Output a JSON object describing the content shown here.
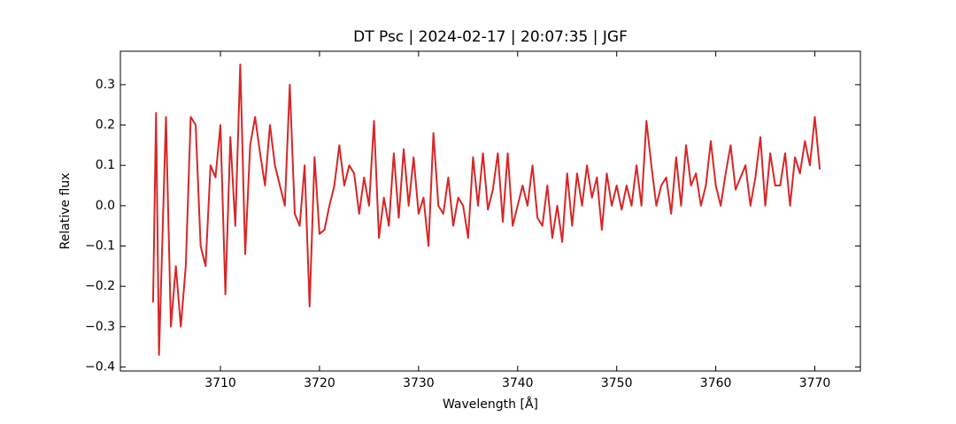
{
  "chart_data": {
    "type": "line",
    "title": "DT Psc | 2024-02-17 | 20:07:35 | JGF",
    "x_label": "Wavelength [Å]",
    "y_label": "Relative flux",
    "xlim": [
      3699.9,
      3774.6
    ],
    "ylim": [
      -0.41,
      0.383
    ],
    "xticks": [
      3710,
      3720,
      3730,
      3740,
      3750,
      3760,
      3770
    ],
    "yticks": [
      {
        "value": -0.4,
        "label": "−0.4"
      },
      {
        "value": -0.3,
        "label": "−0.3"
      },
      {
        "value": -0.2,
        "label": "−0.2"
      },
      {
        "value": -0.1,
        "label": "−0.1"
      },
      {
        "value": 0.0,
        "label": "0.0"
      },
      {
        "value": 0.1,
        "label": "0.1"
      },
      {
        "value": 0.2,
        "label": "0.2"
      },
      {
        "value": 0.3,
        "label": "0.3"
      }
    ],
    "x": [
      3703.2,
      3703.5,
      3703.8,
      3704.5,
      3705.0,
      3705.5,
      3706.0,
      3706.5,
      3707.0,
      3707.5,
      3708.0,
      3708.5,
      3709.0,
      3709.5,
      3710.0,
      3710.5,
      3711.0,
      3711.5,
      3712.0,
      3712.5,
      3713.0,
      3713.5,
      3714.0,
      3714.5,
      3715.0,
      3715.5,
      3716.0,
      3716.5,
      3717.0,
      3717.5,
      3718.0,
      3718.5,
      3719.0,
      3719.5,
      3720.0,
      3720.5,
      3721.0,
      3721.5,
      3722.0,
      3722.5,
      3723.0,
      3723.5,
      3724.0,
      3724.5,
      3725.0,
      3725.5,
      3726.0,
      3726.5,
      3727.0,
      3727.5,
      3728.0,
      3728.5,
      3729.0,
      3729.5,
      3730.0,
      3730.5,
      3731.0,
      3731.5,
      3732.0,
      3732.5,
      3733.0,
      3733.5,
      3734.0,
      3734.5,
      3735.0,
      3735.5,
      3736.0,
      3736.5,
      3737.0,
      3737.5,
      3738.0,
      3738.5,
      3739.0,
      3739.5,
      3740.0,
      3740.5,
      3741.0,
      3741.5,
      3742.0,
      3742.5,
      3743.0,
      3743.5,
      3744.0,
      3744.5,
      3745.0,
      3745.5,
      3746.0,
      3746.5,
      3747.0,
      3747.5,
      3748.0,
      3748.5,
      3749.0,
      3749.5,
      3750.0,
      3750.5,
      3751.0,
      3751.5,
      3752.0,
      3752.5,
      3753.0,
      3753.5,
      3754.0,
      3754.5,
      3755.0,
      3755.5,
      3756.0,
      3756.5,
      3757.0,
      3757.5,
      3758.0,
      3758.5,
      3759.0,
      3759.5,
      3760.0,
      3760.5,
      3761.0,
      3761.5,
      3762.0,
      3762.5,
      3763.0,
      3763.5,
      3764.0,
      3764.5,
      3765.0,
      3765.5,
      3766.0,
      3766.5,
      3767.0,
      3767.5,
      3768.0,
      3768.5,
      3769.0,
      3769.5,
      3770.0,
      3770.5
    ],
    "series": [
      {
        "color": "#d62728",
        "values": [
          -0.24,
          0.23,
          -0.37,
          0.22,
          -0.3,
          -0.15,
          -0.3,
          -0.15,
          0.22,
          0.2,
          -0.1,
          -0.15,
          0.1,
          0.07,
          0.2,
          -0.22,
          0.17,
          -0.05,
          0.35,
          -0.12,
          0.15,
          0.22,
          0.13,
          0.05,
          0.2,
          0.1,
          0.05,
          0.0,
          0.3,
          -0.02,
          -0.05,
          0.1,
          -0.25,
          0.12,
          -0.07,
          -0.06,
          0.0,
          0.05,
          0.15,
          0.05,
          0.1,
          0.08,
          -0.02,
          0.07,
          0.0,
          0.21,
          -0.08,
          0.02,
          -0.05,
          0.13,
          -0.03,
          0.14,
          0.0,
          0.12,
          -0.02,
          0.02,
          -0.1,
          0.18,
          0.0,
          -0.02,
          0.07,
          -0.05,
          0.02,
          0.0,
          -0.08,
          0.12,
          0.0,
          0.13,
          -0.01,
          0.04,
          0.13,
          -0.04,
          0.13,
          -0.05,
          0.0,
          0.05,
          0.0,
          0.1,
          -0.03,
          -0.05,
          0.05,
          -0.08,
          0.0,
          -0.09,
          0.08,
          -0.05,
          0.08,
          0.0,
          0.1,
          0.02,
          0.07,
          -0.06,
          0.08,
          0.0,
          0.05,
          -0.01,
          0.05,
          0.0,
          0.1,
          0.0,
          0.21,
          0.1,
          0.0,
          0.05,
          0.07,
          -0.02,
          0.12,
          0.0,
          0.15,
          0.05,
          0.08,
          0.0,
          0.05,
          0.16,
          0.05,
          0.0,
          0.08,
          0.15,
          0.04,
          0.07,
          0.1,
          0.0,
          0.07,
          0.17,
          0.0,
          0.13,
          0.05,
          0.05,
          0.13,
          0.0,
          0.12,
          0.08,
          0.16,
          0.1,
          0.22,
          0.09
        ]
      }
    ]
  }
}
